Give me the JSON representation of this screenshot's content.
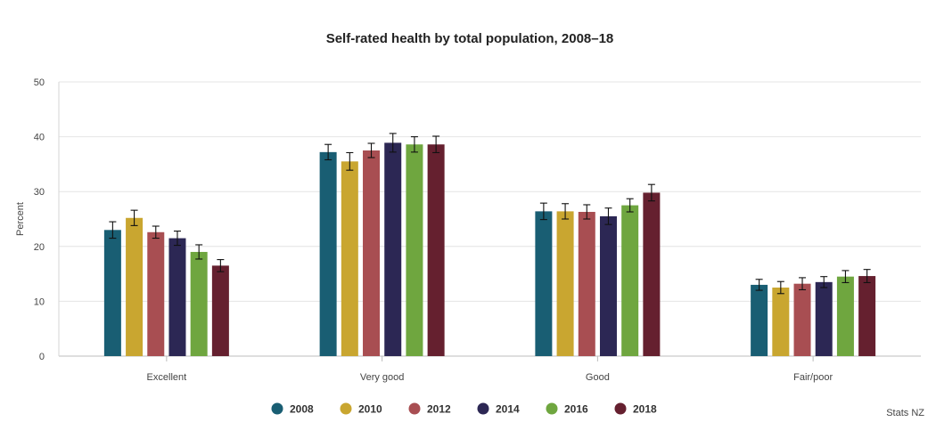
{
  "chart_data": {
    "type": "bar",
    "title": "Self-rated health by total population, 2008–18",
    "xlabel": "",
    "ylabel": "Percent",
    "ylim": [
      0,
      50
    ],
    "yticks": [
      0,
      10,
      20,
      30,
      40,
      50
    ],
    "grid": true,
    "legend_position": "bottom",
    "categories": [
      "Excellent",
      "Very good",
      "Good",
      "Fair/poor"
    ],
    "series": [
      {
        "name": "2008",
        "color": "#195e73",
        "values": [
          23.0,
          37.2,
          26.4,
          13.0
        ],
        "errors": [
          1.5,
          1.4,
          1.5,
          1.0
        ]
      },
      {
        "name": "2010",
        "color": "#c9a630",
        "values": [
          25.2,
          35.5,
          26.4,
          12.5
        ],
        "errors": [
          1.4,
          1.6,
          1.4,
          1.1
        ]
      },
      {
        "name": "2012",
        "color": "#a84e52",
        "values": [
          22.6,
          37.5,
          26.3,
          13.2
        ],
        "errors": [
          1.1,
          1.3,
          1.3,
          1.1
        ]
      },
      {
        "name": "2014",
        "color": "#2c2754",
        "values": [
          21.5,
          38.9,
          25.5,
          13.5
        ],
        "errors": [
          1.3,
          1.7,
          1.5,
          1.0
        ]
      },
      {
        "name": "2016",
        "color": "#6fa63f",
        "values": [
          19.0,
          38.6,
          27.5,
          14.5
        ],
        "errors": [
          1.3,
          1.4,
          1.2,
          1.1
        ]
      },
      {
        "name": "2018",
        "color": "#65202f",
        "values": [
          16.5,
          38.6,
          29.8,
          14.6
        ],
        "errors": [
          1.1,
          1.5,
          1.5,
          1.2
        ]
      }
    ],
    "source": "Stats NZ"
  }
}
